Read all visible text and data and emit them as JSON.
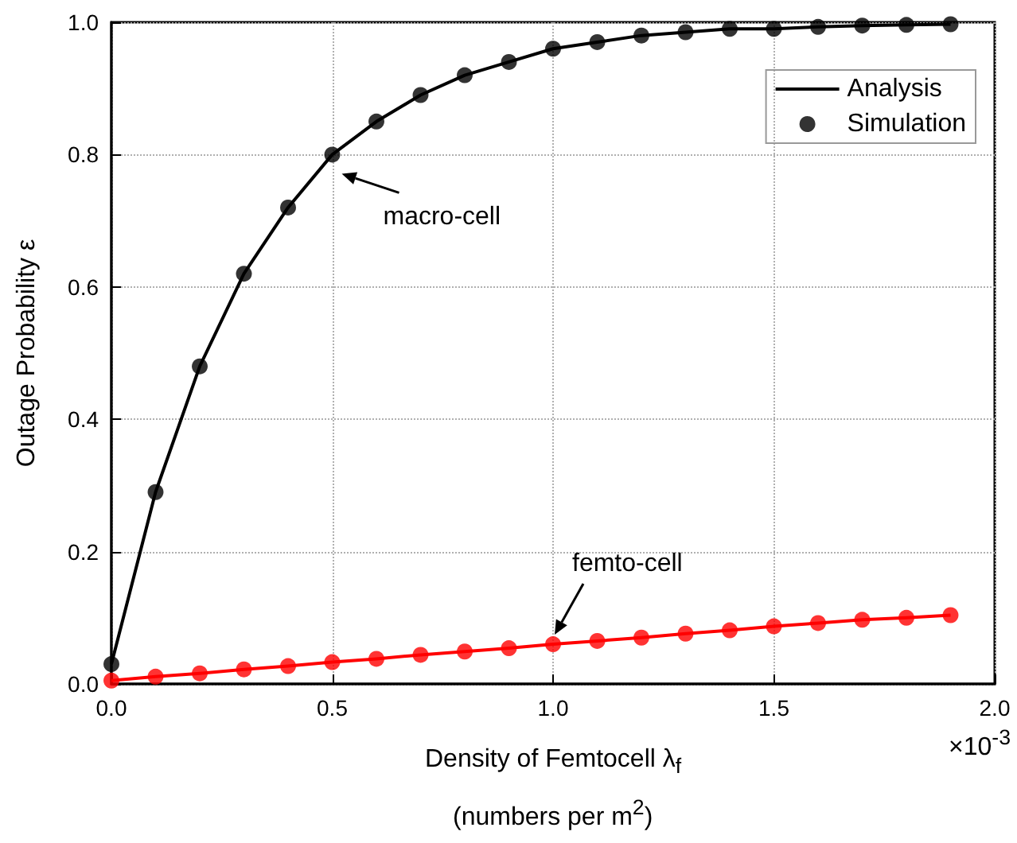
{
  "chart_data": {
    "type": "line",
    "xlabel": "Density of Femtocell λ$_{f}$\n(numbers per m$^{2}$)",
    "ylabel": "Outage Probability ε",
    "x": [
      0,
      0.1,
      0.2,
      0.3,
      0.4,
      0.5,
      0.6,
      0.7,
      0.8,
      0.9,
      1.0,
      1.1,
      1.2,
      1.3,
      1.4,
      1.5,
      1.6,
      1.7,
      1.8,
      1.9
    ],
    "xlim": [
      0,
      2
    ],
    "xticks": [
      {
        "value": 0,
        "label": "0.0"
      },
      0.5,
      {
        "value": 1,
        "label": "1.0"
      },
      1.5,
      {
        "value": 2,
        "label": "2.0"
      }
    ],
    "ylim": [
      0,
      1
    ],
    "yticks": [
      {
        "value": 0,
        "label": "0.0"
      },
      {
        "value": 0.2,
        "label": "0.2"
      },
      {
        "value": 0.4,
        "label": "0.4"
      },
      {
        "value": 0.6,
        "label": "0.6"
      },
      {
        "value": 0.8,
        "label": "0.8"
      },
      {
        "value": 1,
        "label": "1.0"
      }
    ],
    "series": [
      {
        "type": "line",
        "name": "Analysis",
        "color": "#000000",
        "marker": "none",
        "values": [
          0.03,
          0.29,
          0.48,
          0.62,
          0.72,
          0.8,
          0.85,
          0.89,
          0.92,
          0.94,
          0.96,
          0.97,
          0.98,
          0.985,
          0.99,
          0.99,
          0.993,
          0.995,
          0.996,
          0.997
        ]
      },
      {
        "type": "scatter",
        "name": "Simulation",
        "color": "#000000",
        "marker": "circle",
        "values": [
          0.03,
          0.29,
          0.48,
          0.62,
          0.72,
          0.8,
          0.85,
          0.89,
          0.92,
          0.94,
          0.96,
          0.97,
          0.98,
          0.985,
          0.99,
          0.99,
          0.993,
          0.995,
          0.996,
          0.997
        ]
      },
      {
        "type": "line",
        "color": "#ff0000",
        "marker": "none",
        "values": [
          0.005,
          0.011,
          0.016,
          0.022,
          0.027,
          0.033,
          0.038,
          0.044,
          0.049,
          0.054,
          0.06,
          0.065,
          0.07,
          0.076,
          0.081,
          0.087,
          0.092,
          0.097,
          0.1,
          0.104
        ]
      },
      {
        "type": "scatter",
        "color": "#ff0000",
        "marker": "circle",
        "values": [
          0.005,
          0.011,
          0.016,
          0.022,
          0.027,
          0.033,
          0.038,
          0.044,
          0.049,
          0.054,
          0.06,
          0.065,
          0.07,
          0.076,
          0.081,
          0.087,
          0.092,
          0.097,
          0.1,
          0.104
        ]
      }
    ],
    "annotations": [
      {
        "text": "macro-cell",
        "x": 0.5,
        "y": 0.8
      },
      {
        "text": "femto-cell",
        "x": 1.0,
        "y": 0.06
      },
      "×10$^{-3}$"
    ],
    "grid": true,
    "legend": "top right"
  }
}
